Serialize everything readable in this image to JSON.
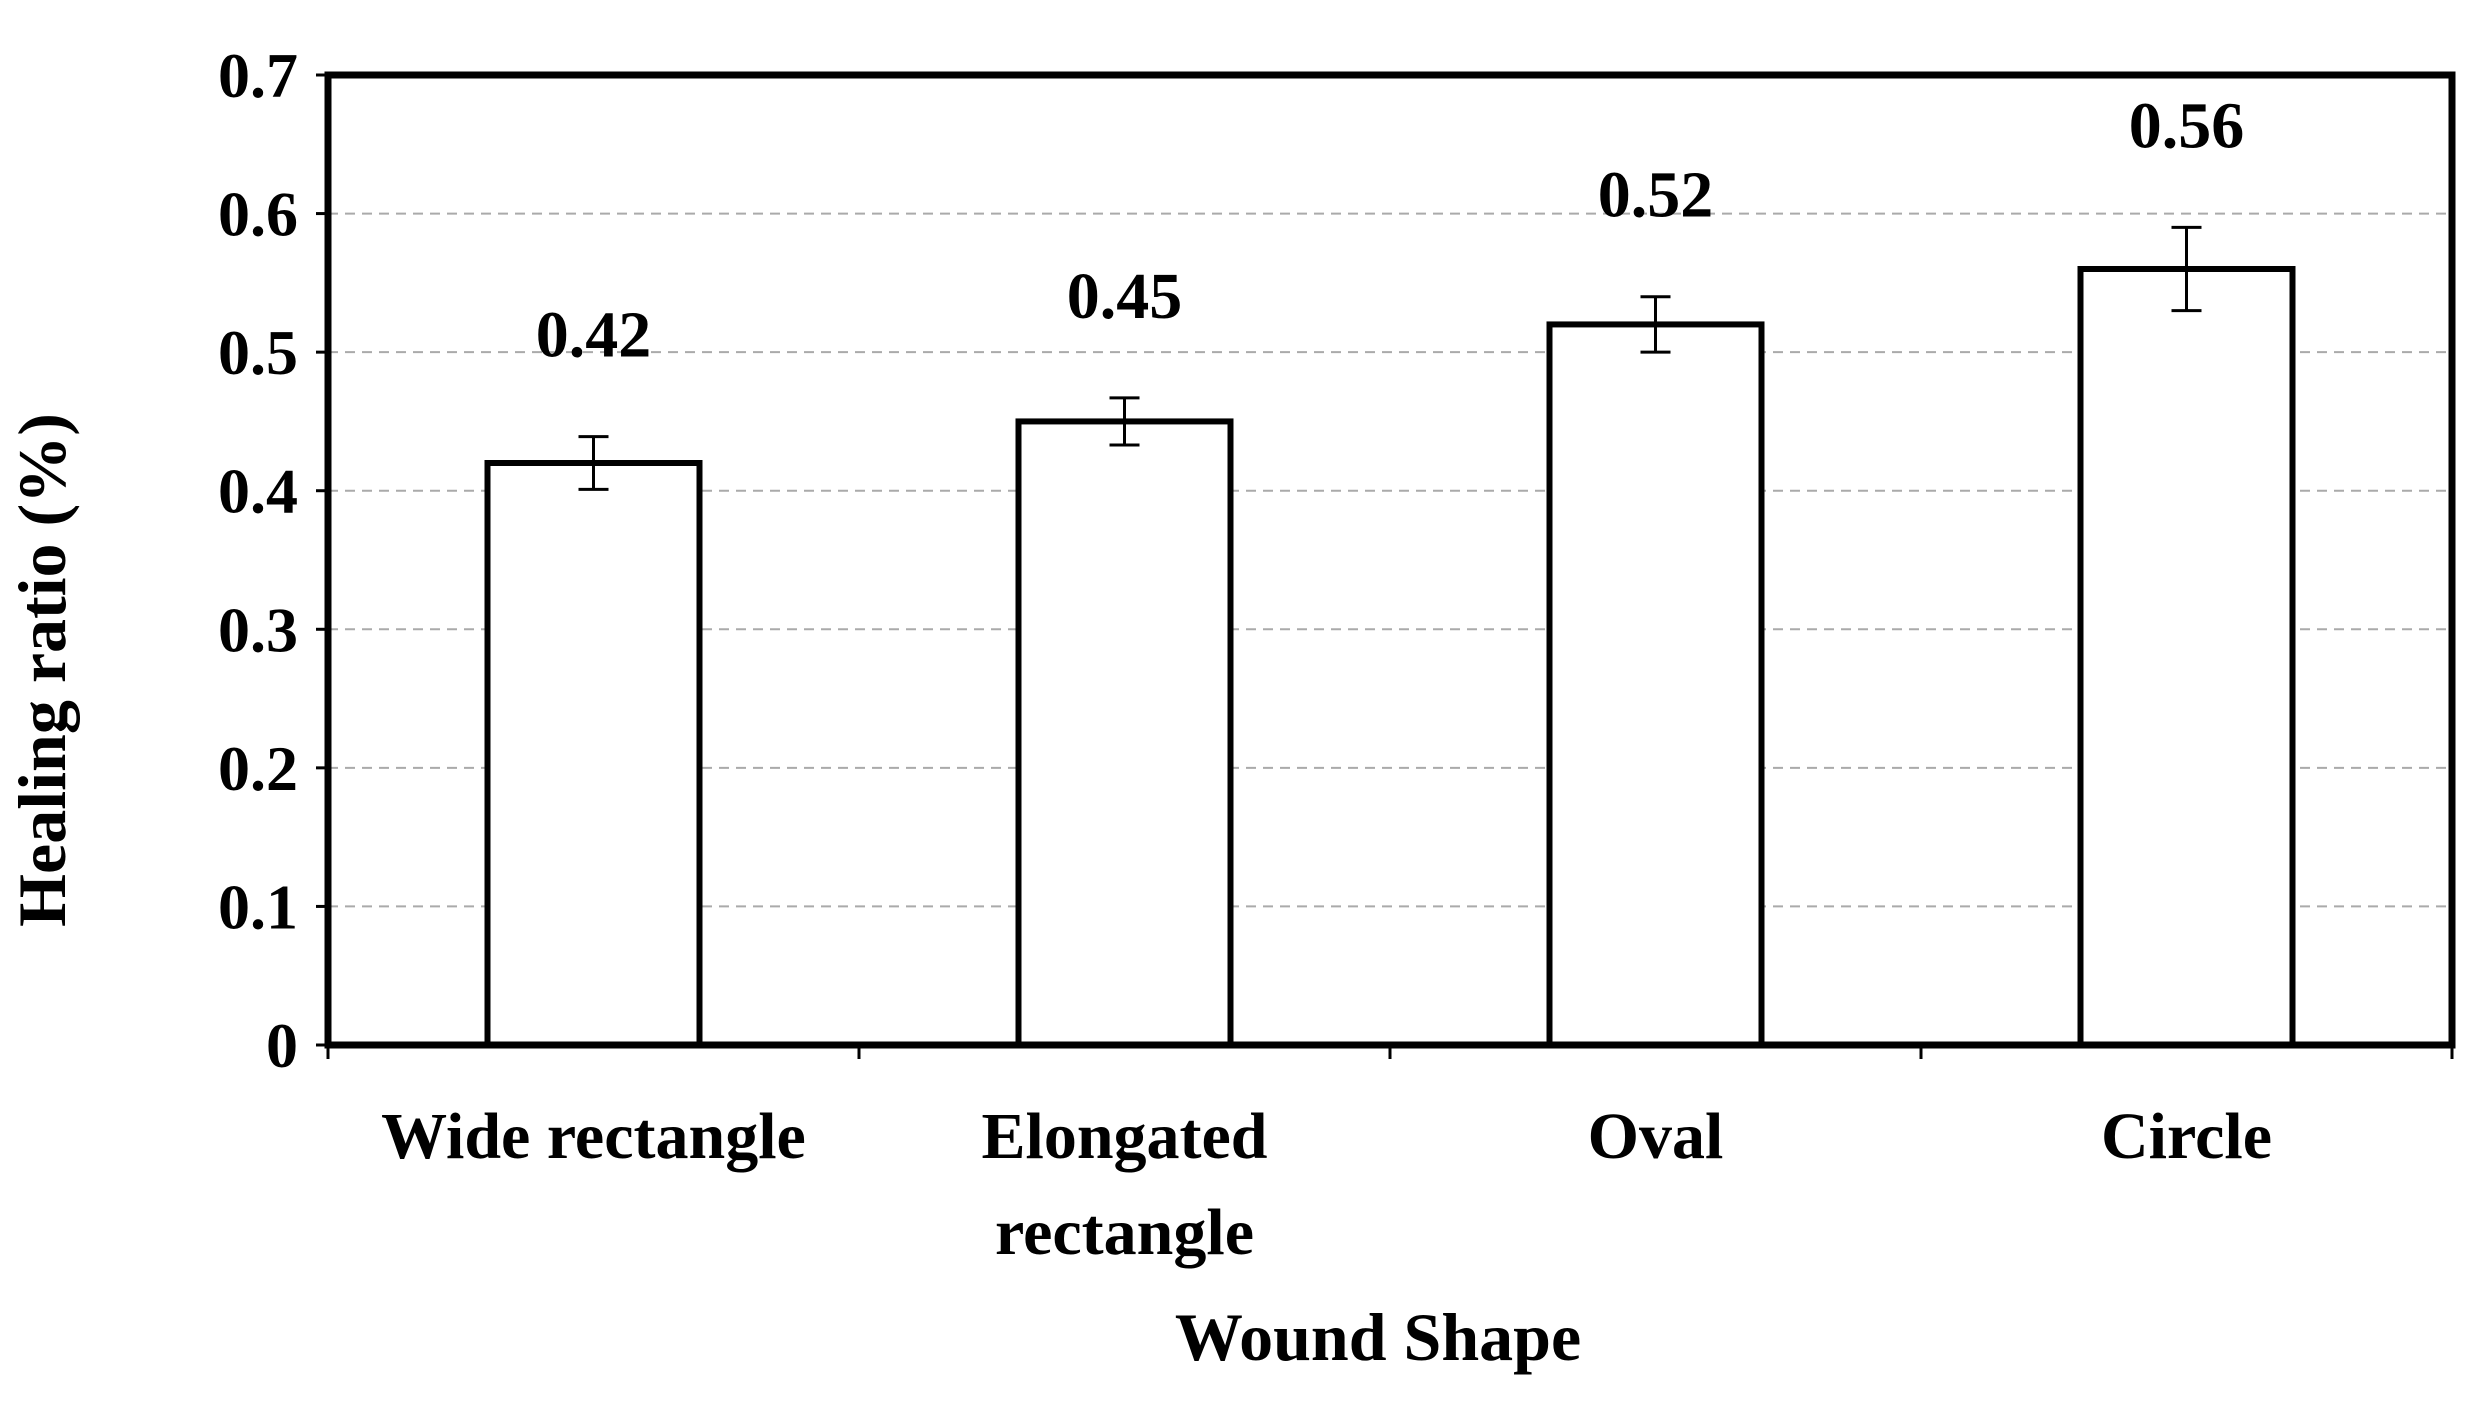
{
  "chart_data": {
    "type": "bar",
    "title": "",
    "categories": [
      [
        "Wide rectangle"
      ],
      [
        "Elongated",
        "rectangle"
      ],
      [
        "Oval"
      ],
      [
        "Circle"
      ]
    ],
    "values": [
      0.42,
      0.45,
      0.52,
      0.56
    ],
    "error": [
      0.019,
      0.017,
      0.02,
      0.03
    ],
    "data_labels": [
      "0.42",
      "0.45",
      "0.52",
      "0.56"
    ],
    "xlabel": "Wound Shape",
    "ylabel": "Healing ratio (%)",
    "ylim": [
      0,
      0.7
    ],
    "yticks": [
      0,
      0.1,
      0.2,
      0.3,
      0.4,
      0.5,
      0.6,
      0.7
    ],
    "ytick_labels": [
      "0",
      "0.1",
      "0.2",
      "0.3",
      "0.4",
      "0.5",
      "0.6",
      "0.7"
    ],
    "grid": "horizontal dashed",
    "legend": "none",
    "colors": {
      "bar_fill": "#ffffff",
      "bar_stroke": "#000000",
      "grid": "#aaaaaa",
      "axis": "#000000"
    }
  }
}
